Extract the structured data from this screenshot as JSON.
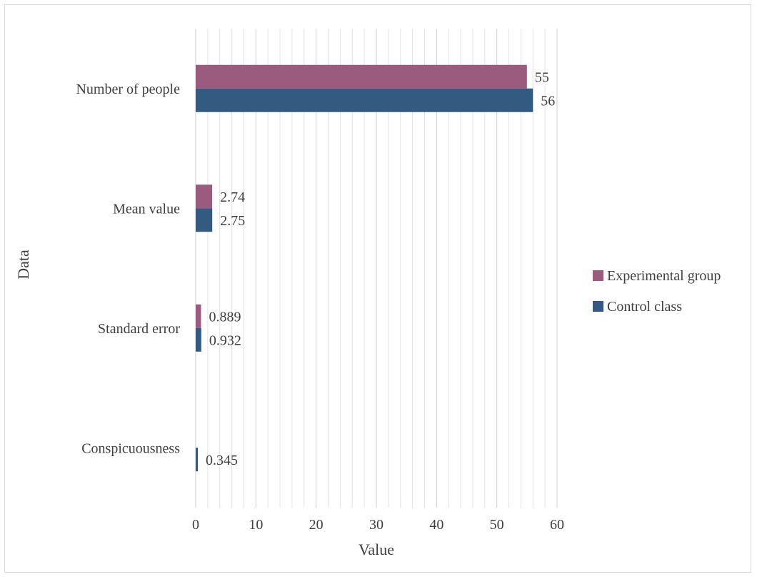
{
  "chart_data": {
    "type": "bar",
    "orientation": "horizontal",
    "categories": [
      "Number of people",
      "Mean value",
      "Standard error",
      "Conspicuousness"
    ],
    "series": [
      {
        "name": "Experimental group",
        "color": "#9b5b7f",
        "values": [
          55,
          2.74,
          0.889,
          null
        ],
        "labels": [
          "55",
          "2.74",
          "0.889",
          ""
        ]
      },
      {
        "name": "Control class",
        "color": "#335a80",
        "values": [
          56,
          2.75,
          0.932,
          0.345
        ],
        "labels": [
          "56",
          "2.75",
          "0.932",
          "0.345"
        ]
      }
    ],
    "xlabel": "Value",
    "ylabel": "Data",
    "xlim": [
      0,
      60
    ],
    "major_ticks": [
      0,
      10,
      20,
      30,
      40,
      50,
      60
    ],
    "minor_step": 2,
    "grid": true,
    "legend_position": "right"
  }
}
